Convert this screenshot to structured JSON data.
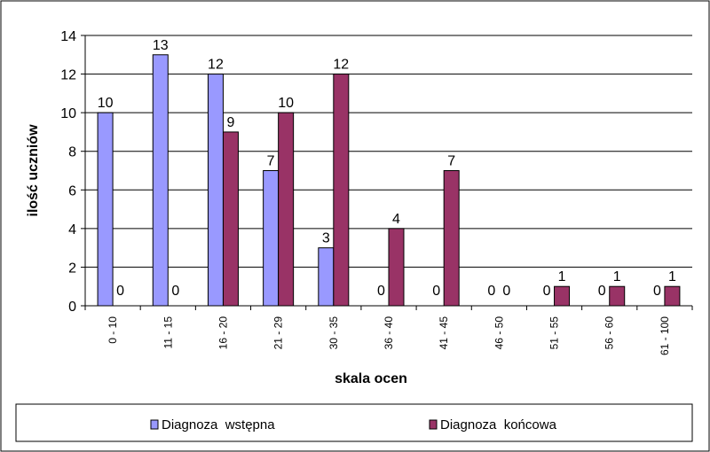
{
  "chart_data": {
    "type": "bar",
    "title": "",
    "xlabel": "skala ocen",
    "ylabel": "ilość uczniów",
    "ylim": [
      0,
      14
    ],
    "ytick_step": 2,
    "grid": "horizontal",
    "legend_position": "bottom",
    "categories": [
      "0 - 10",
      "11 - 15",
      "16 - 20",
      "21 - 29",
      "30 - 35",
      "36 - 40",
      "41 - 45",
      "46 - 50",
      "51 - 55",
      "56 - 60",
      "61 - 100"
    ],
    "series": [
      {
        "name": "Diagnoza  wstępna",
        "color": "#9999ff",
        "values": [
          10,
          13,
          12,
          7,
          3,
          0,
          0,
          0,
          0,
          0,
          0
        ]
      },
      {
        "name": "Diagnoza  końcowa",
        "color": "#993366",
        "values": [
          0,
          0,
          9,
          10,
          12,
          4,
          7,
          0,
          1,
          1,
          1
        ]
      }
    ]
  }
}
